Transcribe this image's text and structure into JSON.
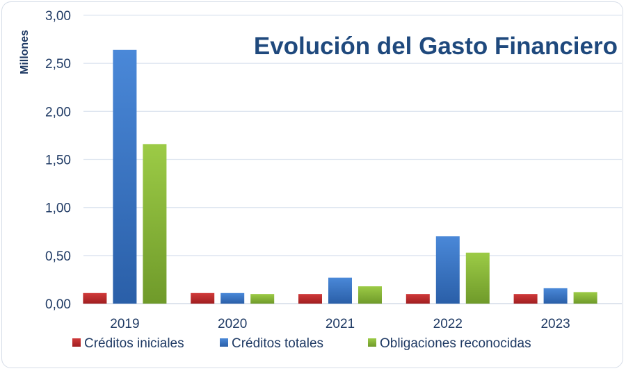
{
  "chart_data": {
    "type": "bar",
    "title": "Evolución del Gasto Financiero",
    "xlabel": "",
    "ylabel": "Millones",
    "categories": [
      "2019",
      "2020",
      "2021",
      "2022",
      "2023"
    ],
    "ylim": [
      0,
      3.0
    ],
    "yticks": [
      "0,00",
      "0,50",
      "1,00",
      "1,50",
      "2,00",
      "2,50",
      "3,00"
    ],
    "grid": true,
    "legend_position": "bottom",
    "series": [
      {
        "name": "Créditos iniciales",
        "color": "#c0282a",
        "values": [
          0.11,
          0.11,
          0.1,
          0.1,
          0.1
        ]
      },
      {
        "name": "Créditos totales",
        "color": "#3a78c8",
        "values": [
          2.64,
          0.11,
          0.27,
          0.7,
          0.16
        ]
      },
      {
        "name": "Obligaciones reconocidas",
        "color": "#8cba38",
        "values": [
          1.66,
          0.1,
          0.18,
          0.53,
          0.12
        ]
      }
    ]
  }
}
